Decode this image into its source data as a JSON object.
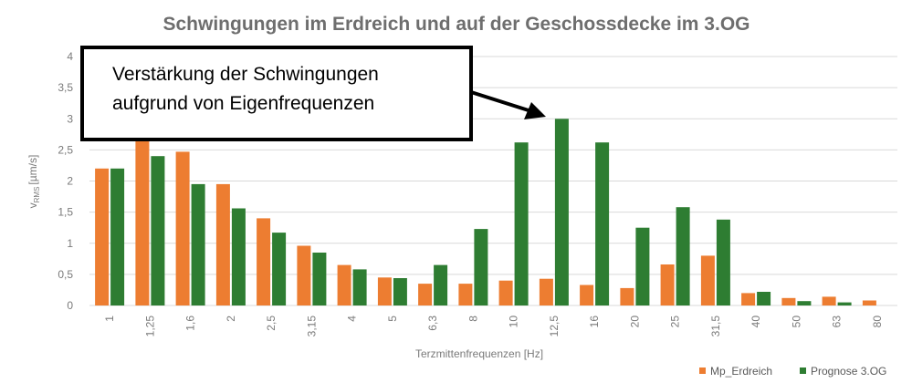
{
  "chart_data": {
    "type": "bar",
    "title": "Schwingungen im Erdreich und auf der Geschossdecke im 3.OG",
    "xlabel": "Terzmittenfrequenzen [Hz]",
    "ylabel_main": "v",
    "ylabel_sub": "RMS",
    "ylabel_unit": "[µm/s]",
    "ylim": [
      0,
      4
    ],
    "yticks": [
      "0",
      "0,5",
      "1",
      "1,5",
      "2",
      "2,5",
      "3",
      "3,5",
      "4"
    ],
    "grid": true,
    "legend_position": "bottom-right",
    "categories": [
      "1",
      "1,25",
      "1,6",
      "2",
      "2,5",
      "3,15",
      "4",
      "5",
      "6,3",
      "8",
      "10",
      "12,5",
      "16",
      "20",
      "25",
      "31,5",
      "40",
      "50",
      "63",
      "80"
    ],
    "series": [
      {
        "name": "Mp_Erdreich",
        "color": "#ED7D31",
        "values": [
          2.2,
          2.7,
          2.47,
          1.95,
          1.4,
          0.96,
          0.65,
          0.45,
          0.35,
          0.35,
          0.4,
          0.43,
          0.33,
          0.28,
          0.66,
          0.8,
          0.2,
          0.12,
          0.14,
          0.08
        ]
      },
      {
        "name": "Prognose 3.OG",
        "color": "#2E7D32",
        "values": [
          2.2,
          2.4,
          1.95,
          1.56,
          1.17,
          0.85,
          0.58,
          0.44,
          0.65,
          1.23,
          2.62,
          3.0,
          2.62,
          1.25,
          1.58,
          1.38,
          0.22,
          0.07,
          0.05,
          0.0
        ]
      }
    ],
    "annotation": {
      "line1": "Verstärkung der Schwingungen",
      "line2": "aufgrund von Eigenfrequenzen",
      "arrow_target_category": "12,5"
    }
  }
}
